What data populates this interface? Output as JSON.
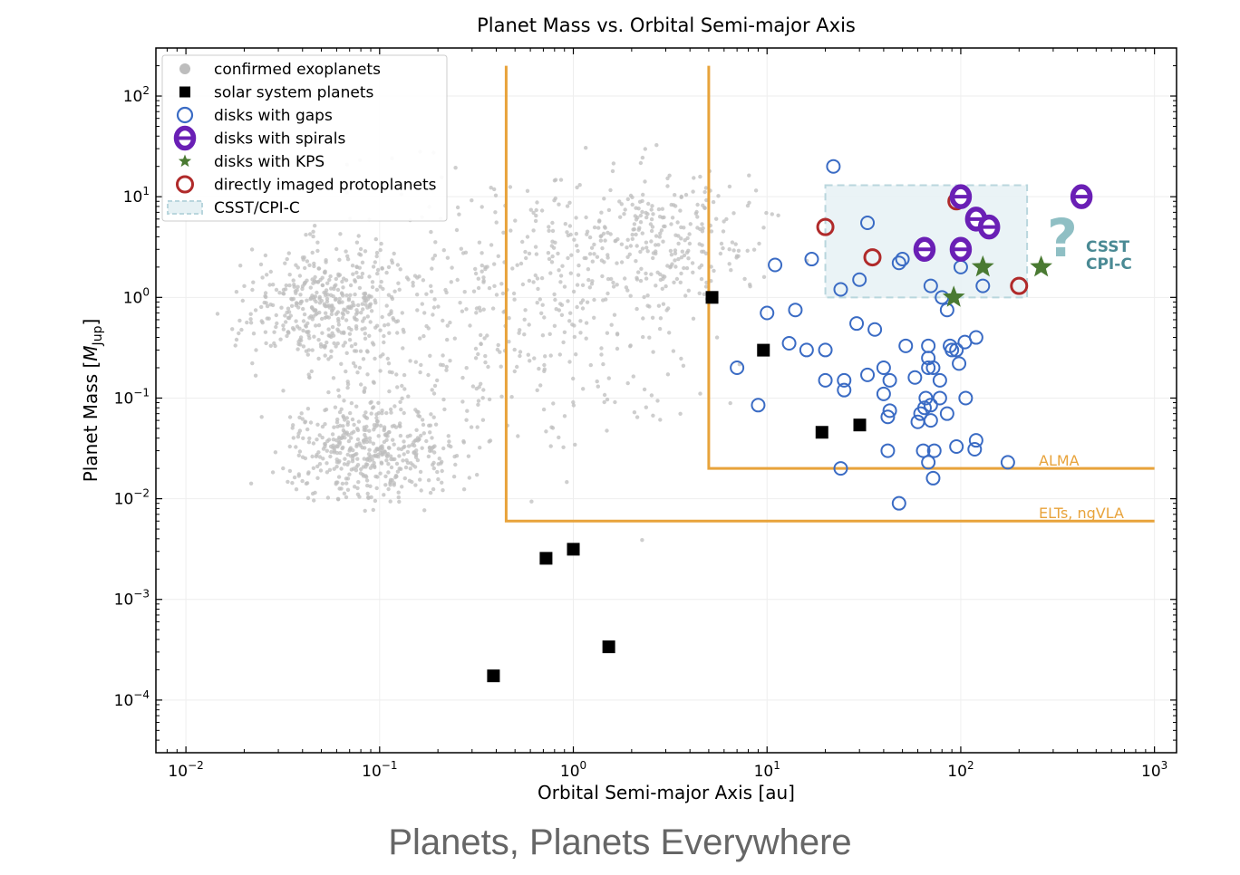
{
  "caption": "Planets, Planets Everywhere",
  "chart_data": {
    "type": "scatter",
    "title": "Planet Mass vs. Orbital Semi-major Axis",
    "xlabel": "Orbital Semi-major Axis [au]",
    "ylabel_main": "Planet Mass [",
    "ylabel_italic": "M",
    "ylabel_sub": "Jup",
    "ylabel_end": "]",
    "x_scale": "log",
    "y_scale": "log",
    "xlim": [
      0.007,
      1300
    ],
    "ylim": [
      3e-05,
      300
    ],
    "x_ticks": [
      {
        "base": "10",
        "exp": "−2",
        "value": 0.01
      },
      {
        "base": "10",
        "exp": "−1",
        "value": 0.1
      },
      {
        "base": "10",
        "exp": "0",
        "value": 1
      },
      {
        "base": "10",
        "exp": "1",
        "value": 10
      },
      {
        "base": "10",
        "exp": "2",
        "value": 100
      },
      {
        "base": "10",
        "exp": "3",
        "value": 1000
      }
    ],
    "y_ticks": [
      {
        "base": "10",
        "exp": "−4",
        "value": 0.0001
      },
      {
        "base": "10",
        "exp": "−3",
        "value": 0.001
      },
      {
        "base": "10",
        "exp": "−2",
        "value": 0.01
      },
      {
        "base": "10",
        "exp": "−1",
        "value": 0.1
      },
      {
        "base": "10",
        "exp": "0",
        "value": 1
      },
      {
        "base": "10",
        "exp": "1",
        "value": 10
      },
      {
        "base": "10",
        "exp": "2",
        "value": 100
      }
    ],
    "grid": true,
    "legend_position": "top-left",
    "legend": [
      {
        "label": "confirmed exoplanets",
        "marker": "dot-gray"
      },
      {
        "label": "solar system planets",
        "marker": "square-black"
      },
      {
        "label": "disks with gaps",
        "marker": "ring-blue"
      },
      {
        "label": "disks with spirals",
        "marker": "theta-purple"
      },
      {
        "label": "disks with KPS",
        "marker": "star-green"
      },
      {
        "label": "directly imaged protoplanets",
        "marker": "ring-red"
      },
      {
        "label": "CSST/CPI-C",
        "marker": "box-teal"
      }
    ],
    "colors": {
      "exoplanets": "#bdbdbd",
      "solar": "#000000",
      "gaps": "#3a6bc4",
      "spirals": "#6a1fb5",
      "kps": "#4a7a32",
      "protoplanets": "#b02a2a",
      "region_fill": "#e6f1f4",
      "region_edge": "#b9d6dd",
      "limits": "#e8a33b",
      "csst_text": "#4a8a94",
      "question": "#8fbfc4"
    },
    "series": {
      "solar_system_planets": [
        [
          0.387,
          0.000174
        ],
        [
          0.723,
          0.00256
        ],
        [
          1.0,
          0.00315
        ],
        [
          1.524,
          0.000338
        ],
        [
          5.2,
          1.0
        ],
        [
          9.58,
          0.299
        ],
        [
          19.2,
          0.0457
        ],
        [
          30.1,
          0.054
        ]
      ],
      "disks_with_gaps": [
        [
          22,
          20
        ],
        [
          33,
          5.5
        ],
        [
          11,
          2.1
        ],
        [
          17,
          2.4
        ],
        [
          30,
          1.5
        ],
        [
          24,
          1.2
        ],
        [
          48,
          2.2
        ],
        [
          50,
          2.4
        ],
        [
          70,
          1.3
        ],
        [
          100,
          2.0
        ],
        [
          80,
          1.0
        ],
        [
          85,
          0.75
        ],
        [
          130,
          1.3
        ],
        [
          10,
          0.7
        ],
        [
          14,
          0.75
        ],
        [
          29,
          0.55
        ],
        [
          36,
          0.48
        ],
        [
          13,
          0.35
        ],
        [
          16,
          0.3
        ],
        [
          20,
          0.3
        ],
        [
          7,
          0.2
        ],
        [
          52,
          0.33
        ],
        [
          68,
          0.33
        ],
        [
          88,
          0.33
        ],
        [
          95,
          0.3
        ],
        [
          105,
          0.36
        ],
        [
          120,
          0.4
        ],
        [
          68,
          0.25
        ],
        [
          68,
          0.2
        ],
        [
          90,
          0.3
        ],
        [
          40,
          0.2
        ],
        [
          20,
          0.15
        ],
        [
          25,
          0.15
        ],
        [
          33,
          0.17
        ],
        [
          43,
          0.15
        ],
        [
          58,
          0.16
        ],
        [
          78,
          0.15
        ],
        [
          72,
          0.2
        ],
        [
          98,
          0.22
        ],
        [
          25,
          0.12
        ],
        [
          40,
          0.11
        ],
        [
          66,
          0.1
        ],
        [
          70,
          0.085
        ],
        [
          78,
          0.1
        ],
        [
          85,
          0.07
        ],
        [
          106,
          0.1
        ],
        [
          43,
          0.075
        ],
        [
          42,
          0.065
        ],
        [
          62,
          0.07
        ],
        [
          60,
          0.058
        ],
        [
          70,
          0.06
        ],
        [
          65,
          0.08
        ],
        [
          9,
          0.085
        ],
        [
          120,
          0.038
        ],
        [
          118,
          0.031
        ],
        [
          42,
          0.03
        ],
        [
          64,
          0.03
        ],
        [
          73,
          0.03
        ],
        [
          95,
          0.033
        ],
        [
          68,
          0.023
        ],
        [
          72,
          0.016
        ],
        [
          175,
          0.023
        ],
        [
          24,
          0.02
        ],
        [
          48,
          0.009
        ]
      ],
      "disks_with_spirals": [
        [
          100,
          10.0
        ],
        [
          420,
          10.0
        ],
        [
          120,
          6.0
        ],
        [
          140,
          5.0
        ],
        [
          65,
          3.0
        ],
        [
          100,
          3.0
        ]
      ],
      "disks_with_kps": [
        [
          130,
          2.0
        ],
        [
          260,
          2.0
        ],
        [
          92,
          1.0
        ]
      ],
      "directly_imaged_protoplanets": [
        [
          95,
          9.0
        ],
        [
          20,
          5.0
        ],
        [
          35,
          2.5
        ],
        [
          200,
          1.3
        ]
      ]
    },
    "exoplanet_sample_size": 1600,
    "csst_region": {
      "x": [
        20,
        220
      ],
      "y": [
        1,
        13
      ],
      "label": "CSST/CPI-C"
    },
    "csst_annotation": {
      "question_mark": "?",
      "line1": "CSST",
      "line2": "CPI-C"
    },
    "alma_limit": {
      "label": "ALMA",
      "x_min": 5.0,
      "x_max": 1000,
      "y_top": 200,
      "y_floor": 0.02
    },
    "elts_limit": {
      "label": "ELTs, ngVLA",
      "x_min": 0.45,
      "x_max": 1000,
      "y_top": 200,
      "y_floor": 0.006
    }
  }
}
